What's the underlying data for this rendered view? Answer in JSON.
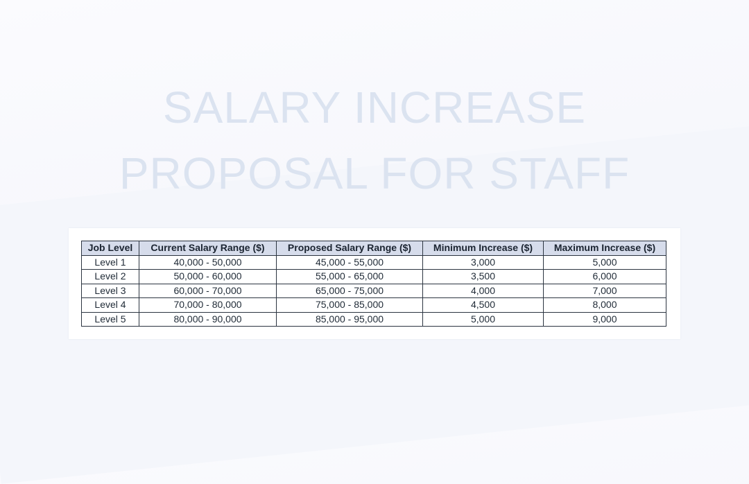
{
  "title": {
    "line1": "SALARY INCREASE",
    "line2": "PROPOSAL FOR STAFF"
  },
  "table": {
    "headers": [
      "Job Level",
      "Current Salary Range ($)",
      "Proposed Salary Range ($)",
      "Minimum Increase ($)",
      "Maximum Increase ($)"
    ],
    "rows": [
      [
        "Level 1",
        "40,000 - 50,000",
        "45,000 - 55,000",
        "3,000",
        "5,000"
      ],
      [
        "Level 2",
        "50,000 - 60,000",
        "55,000 - 65,000",
        "3,500",
        "6,000"
      ],
      [
        "Level 3",
        "60,000 - 70,000",
        "65,000 - 75,000",
        "4,000",
        "7,000"
      ],
      [
        "Level 4",
        "70,000 - 80,000",
        "75,000 - 85,000",
        "4,500",
        "8,000"
      ],
      [
        "Level 5",
        "80,000 - 90,000",
        "85,000 - 95,000",
        "5,000",
        "9,000"
      ]
    ]
  }
}
